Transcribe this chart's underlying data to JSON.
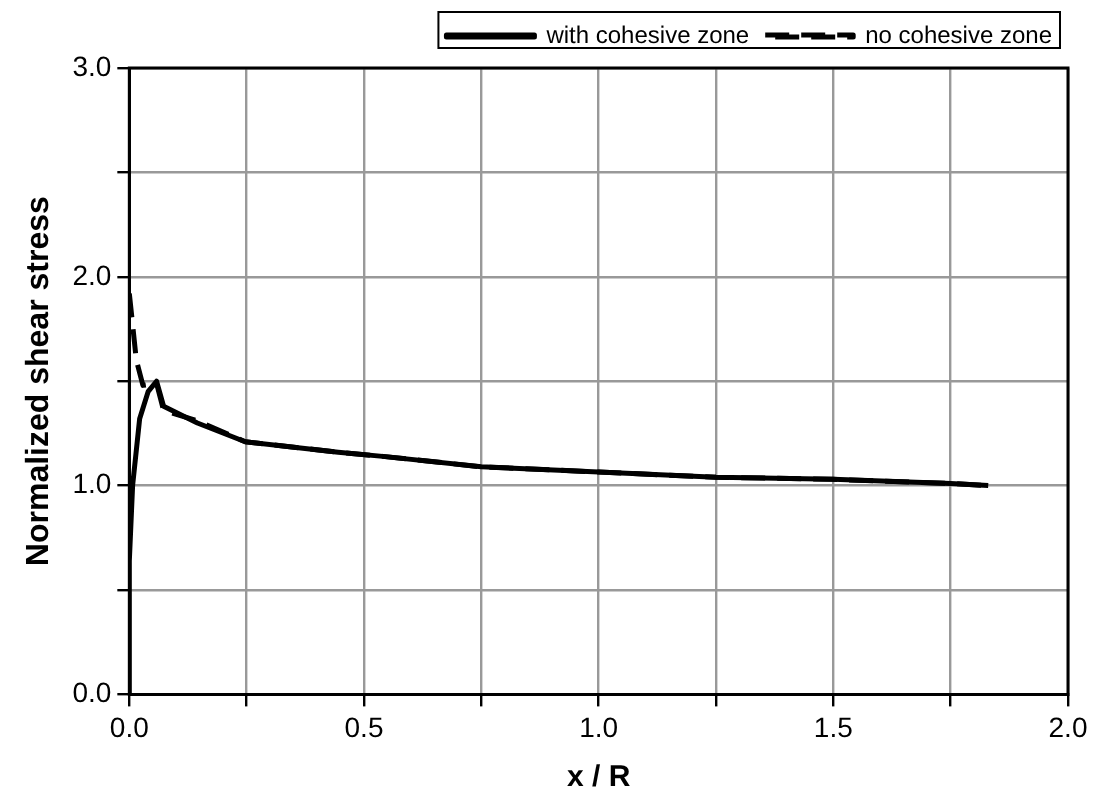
{
  "chart_data": {
    "type": "line",
    "xlabel": "x / R",
    "ylabel": "Normalized shear stress",
    "series": [
      {
        "name": "with cohesive zone",
        "color": "#000000",
        "line_style": "solid",
        "x": [
          0,
          0,
          0.007,
          0.022,
          0.04,
          0.058,
          0.073,
          0.145,
          0.247,
          0.445,
          0.54,
          0.75,
          1.0,
          1.25,
          1.5,
          1.75,
          1.83
        ],
        "values": [
          0,
          0.64,
          1.0,
          1.32,
          1.45,
          1.5,
          1.38,
          1.3,
          1.21,
          1.16,
          1.14,
          1.09,
          1.065,
          1.04,
          1.03,
          1.01,
          1.0
        ]
      },
      {
        "name": "no cohesive zone",
        "color": "#000000",
        "line_style": "dashed",
        "x": [
          0,
          0.015,
          0.029,
          0.058,
          0.073,
          0.145,
          0.247,
          0.445,
          0.54,
          0.75,
          1.0,
          1.25,
          1.5,
          1.75,
          1.83
        ],
        "values": [
          1.92,
          1.6,
          1.48,
          1.49,
          1.36,
          1.31,
          1.21,
          1.16,
          1.14,
          1.09,
          1.065,
          1.04,
          1.03,
          1.01,
          1.0
        ]
      }
    ],
    "xlim": [
      0,
      2
    ],
    "xticks": [
      {
        "value": 0,
        "label": "0.0"
      },
      {
        "value": 0.25,
        "label": null
      },
      {
        "value": 0.5,
        "label": "0.5"
      },
      {
        "value": 0.75,
        "label": null
      },
      {
        "value": 1,
        "label": "1.0"
      },
      {
        "value": 1.25,
        "label": null
      },
      {
        "value": 1.5,
        "label": "1.5"
      },
      {
        "value": 1.75,
        "label": null
      },
      {
        "value": 2,
        "label": "2.0"
      }
    ],
    "ylim": [
      0,
      3
    ],
    "yticks": [
      {
        "value": 0,
        "label": "0.0"
      },
      {
        "value": 0.5,
        "label": null
      },
      {
        "value": 1,
        "label": "1.0"
      },
      {
        "value": 1.5,
        "label": null
      },
      {
        "value": 2,
        "label": "2.0"
      },
      {
        "value": 2.5,
        "label": null
      },
      {
        "value": 3,
        "label": "3.0"
      }
    ],
    "grid": true,
    "legend": "top",
    "marker": "none"
  }
}
